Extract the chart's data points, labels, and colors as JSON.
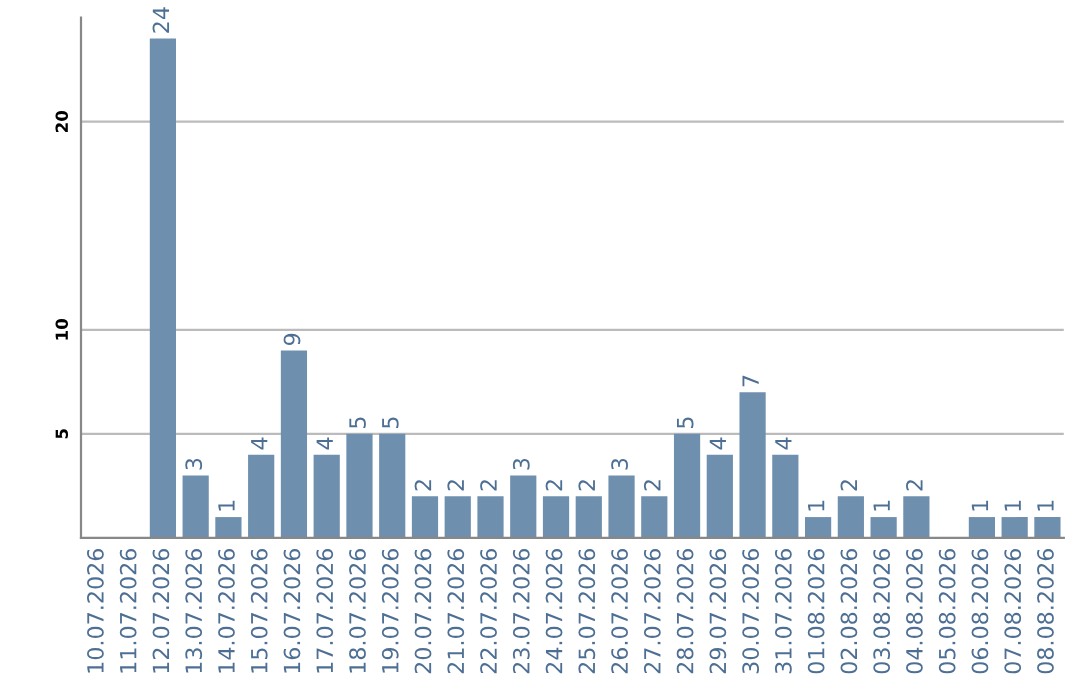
{
  "chart_data": {
    "type": "bar",
    "categories": [
      "10.07.2026",
      "11.07.2026",
      "12.07.2026",
      "13.07.2026",
      "14.07.2026",
      "15.07.2026",
      "16.07.2026",
      "17.07.2026",
      "18.07.2026",
      "19.07.2026",
      "20.07.2026",
      "21.07.2026",
      "22.07.2026",
      "23.07.2026",
      "24.07.2026",
      "25.07.2026",
      "26.07.2026",
      "27.07.2026",
      "28.07.2026",
      "29.07.2026",
      "30.07.2026",
      "31.07.2026",
      "01.08.2026",
      "02.08.2026",
      "03.08.2026",
      "04.08.2026",
      "05.08.2026",
      "06.08.2026",
      "07.08.2026",
      "08.08.2026"
    ],
    "values": [
      null,
      null,
      24,
      3,
      1,
      4,
      9,
      4,
      5,
      5,
      2,
      2,
      2,
      3,
      2,
      2,
      3,
      2,
      5,
      4,
      7,
      4,
      1,
      2,
      1,
      2,
      null,
      1,
      1,
      1
    ],
    "color": "#6e8fae",
    "ylim": [
      0,
      25
    ],
    "yticks": [
      5,
      10,
      20
    ],
    "grid": "y",
    "data_labels": true
  }
}
